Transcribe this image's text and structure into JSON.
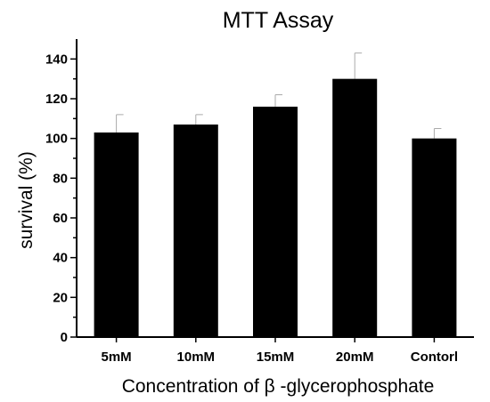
{
  "chart_data": {
    "type": "bar",
    "title": "MTT Assay",
    "xlabel": "Concentration of β -glycerophosphate",
    "ylabel": "survival (%)",
    "categories": [
      "5mM",
      "10mM",
      "15mM",
      "20mM",
      "Contorl"
    ],
    "values": [
      103,
      107,
      116,
      130,
      100
    ],
    "errors": [
      9,
      5,
      6,
      13,
      5
    ],
    "ylim": [
      0,
      150
    ],
    "yticks": [
      0,
      20,
      40,
      60,
      80,
      100,
      120,
      140
    ],
    "ytick_labels": [
      "0",
      "20",
      "40",
      "60",
      "80",
      "100",
      "120",
      "140"
    ],
    "bar_color": "#000000",
    "error_color": "#aaaaaa",
    "grid": false,
    "legend": "none"
  }
}
